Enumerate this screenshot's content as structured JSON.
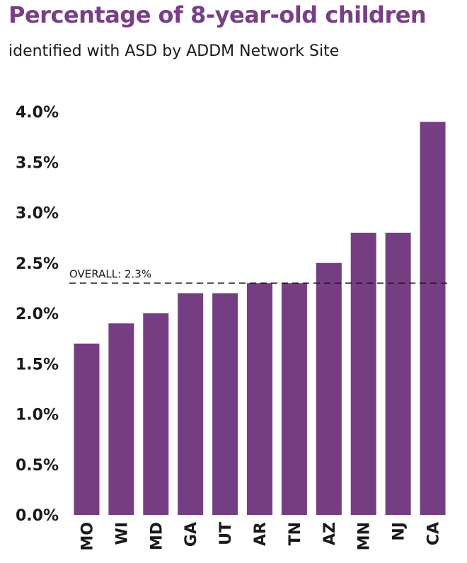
{
  "chart_data": {
    "type": "bar",
    "title": "Percentage of 8-year-old children",
    "subtitle": "identified with ASD by ADDM Network Site",
    "xlabel": "",
    "ylabel": "",
    "categories": [
      "MO",
      "WI",
      "MD",
      "GA",
      "UT",
      "AR",
      "TN",
      "AZ",
      "MN",
      "NJ",
      "CA"
    ],
    "values": [
      1.7,
      1.9,
      2.0,
      2.2,
      2.2,
      2.3,
      2.3,
      2.5,
      2.8,
      2.8,
      3.9
    ],
    "ylim": [
      0,
      4.0
    ],
    "yticks": [
      "0.0%",
      "0.5%",
      "1.0%",
      "1.5%",
      "2.0%",
      "2.5%",
      "3.0%",
      "3.5%",
      "4.0%"
    ],
    "reference_line": {
      "value": 2.3,
      "label": "OVERALL: 2.3%"
    },
    "grid": false,
    "legend": "none",
    "colors": {
      "bar": "#753e82",
      "title": "#7a3e87",
      "text": "#1a1a1a"
    }
  }
}
